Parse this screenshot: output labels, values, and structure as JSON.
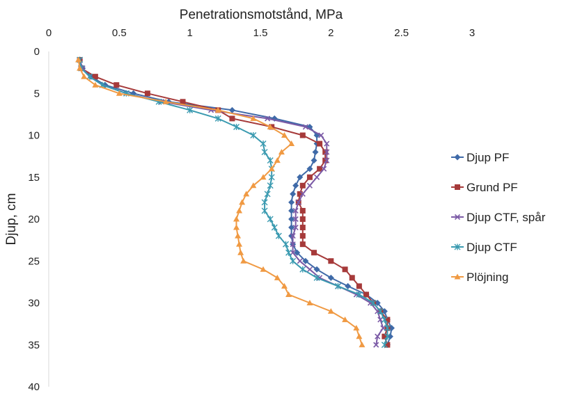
{
  "chart_data": {
    "type": "line",
    "orientation": "x-top, y-inverted",
    "xlabel": "Penetrationsmotstånd, MPa",
    "ylabel": "Djup, cm",
    "xlim": [
      0,
      3
    ],
    "ylim": [
      0,
      40
    ],
    "xticks": [
      "0",
      "0.5",
      "1",
      "1.5",
      "2",
      "2.5",
      "3"
    ],
    "yticks": [
      "0",
      "5",
      "10",
      "15",
      "20",
      "25",
      "30",
      "35",
      "40"
    ],
    "grid": false,
    "legend_position": "right",
    "depths": [
      1,
      2,
      3,
      4,
      5,
      6,
      7,
      8,
      9,
      10,
      11,
      12,
      13,
      14,
      15,
      16,
      17,
      18,
      19,
      20,
      21,
      22,
      23,
      24,
      25,
      26,
      27,
      28,
      29,
      30,
      31,
      32,
      33,
      34,
      35
    ],
    "series": [
      {
        "name": "Djup PF",
        "color": "#3f6aa8",
        "marker": "diamond",
        "values": [
          0.22,
          0.24,
          0.3,
          0.4,
          0.6,
          0.85,
          1.3,
          1.6,
          1.85,
          1.9,
          1.9,
          1.89,
          1.88,
          1.85,
          1.78,
          1.75,
          1.73,
          1.72,
          1.72,
          1.72,
          1.72,
          1.72,
          1.73,
          1.76,
          1.82,
          1.9,
          2.0,
          2.12,
          2.25,
          2.33,
          2.38,
          2.4,
          2.43,
          2.42,
          2.4
        ]
      },
      {
        "name": "Grund PF",
        "color": "#a63a3a",
        "marker": "square",
        "values": [
          0.22,
          0.23,
          0.33,
          0.48,
          0.7,
          0.95,
          1.2,
          1.3,
          1.58,
          1.8,
          1.92,
          1.96,
          1.96,
          1.92,
          1.85,
          1.8,
          1.78,
          1.77,
          1.8,
          1.8,
          1.8,
          1.8,
          1.8,
          1.88,
          2.0,
          2.1,
          2.15,
          2.2,
          2.25,
          2.3,
          2.35,
          2.4,
          2.4,
          2.38,
          2.4
        ]
      },
      {
        "name": "Djup CTF, spår",
        "color": "#7b5aa6",
        "marker": "x",
        "values": [
          0.22,
          0.24,
          0.29,
          0.38,
          0.55,
          0.8,
          1.15,
          1.55,
          1.82,
          1.93,
          1.97,
          1.97,
          1.97,
          1.95,
          1.9,
          1.85,
          1.8,
          1.77,
          1.75,
          1.75,
          1.75,
          1.73,
          1.73,
          1.73,
          1.78,
          1.85,
          1.92,
          2.05,
          2.18,
          2.28,
          2.33,
          2.35,
          2.37,
          2.33,
          2.32
        ]
      },
      {
        "name": "Djup CTF",
        "color": "#3a9ab0",
        "marker": "star",
        "values": [
          0.22,
          0.23,
          0.29,
          0.38,
          0.55,
          0.78,
          1.0,
          1.2,
          1.33,
          1.45,
          1.52,
          1.53,
          1.57,
          1.58,
          1.58,
          1.57,
          1.55,
          1.53,
          1.53,
          1.57,
          1.6,
          1.63,
          1.68,
          1.7,
          1.73,
          1.8,
          1.9,
          2.05,
          2.2,
          2.3,
          2.35,
          2.38,
          2.4,
          2.4,
          2.38
        ]
      },
      {
        "name": "Plöjning",
        "color": "#f09a43",
        "marker": "triangle",
        "values": [
          0.21,
          0.22,
          0.25,
          0.33,
          0.5,
          0.83,
          1.2,
          1.45,
          1.57,
          1.67,
          1.72,
          1.65,
          1.62,
          1.58,
          1.52,
          1.45,
          1.4,
          1.37,
          1.35,
          1.33,
          1.33,
          1.34,
          1.35,
          1.36,
          1.38,
          1.52,
          1.62,
          1.67,
          1.7,
          1.85,
          2.0,
          2.1,
          2.18,
          2.2,
          2.22
        ]
      }
    ]
  }
}
